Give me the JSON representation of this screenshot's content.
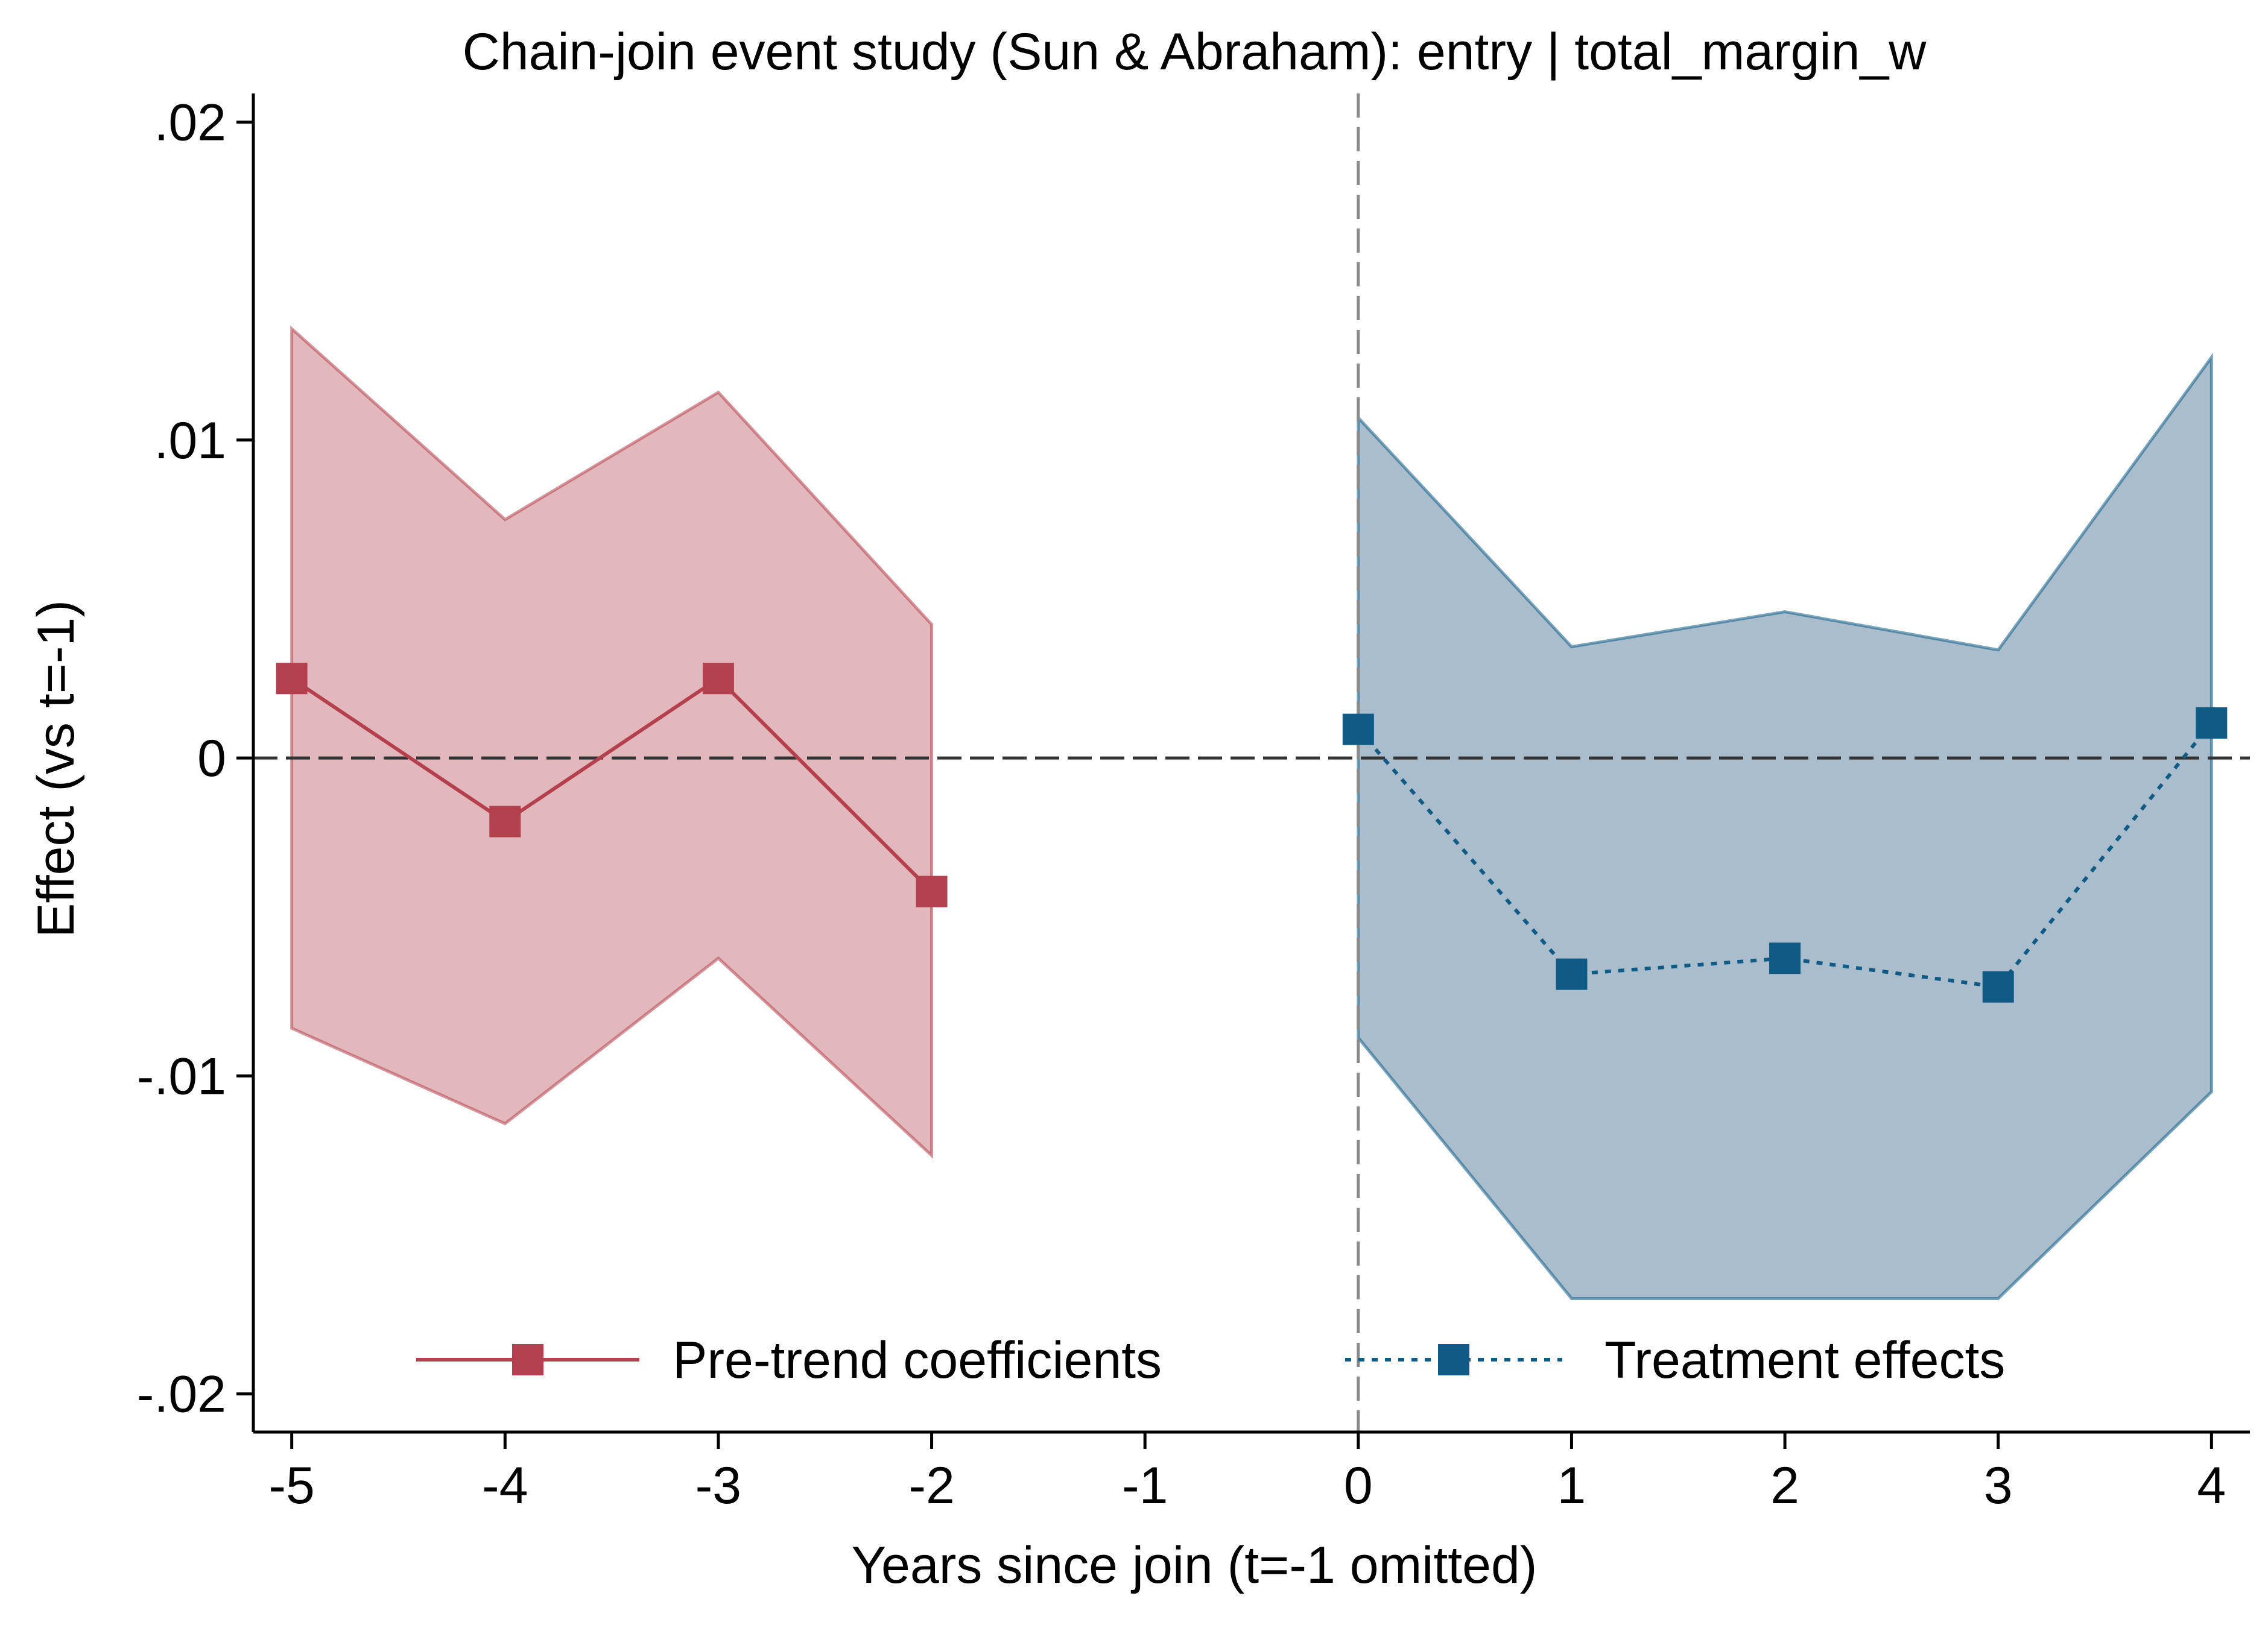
{
  "chart_data": {
    "type": "line",
    "title": "Chain-join event study (Sun & Abraham): entry | total_margin_w",
    "xlabel": "Years since join (t=-1 omitted)",
    "ylabel": "Effect (vs t=-1)",
    "x_ticks": [
      -5,
      -4,
      -3,
      -2,
      -1,
      0,
      1,
      2,
      3,
      4
    ],
    "x_tick_labels": [
      "-5",
      "-4",
      "-3",
      "-2",
      "-1",
      "0",
      "1",
      "2",
      "3",
      "4"
    ],
    "y_ticks": [
      -0.02,
      -0.01,
      0,
      0.01,
      0.02
    ],
    "y_tick_labels": [
      "-.02",
      "-.01",
      "0",
      ".01",
      ".02"
    ],
    "xlim": [
      -5.18,
      4.18
    ],
    "ylim": [
      -0.0212,
      0.0209
    ],
    "reference_lines": {
      "y": 0,
      "x": 0
    },
    "grid": false,
    "legend_position": "bottom",
    "series": [
      {
        "name": "Pre-trend coefficients",
        "style": "solid",
        "color": "#b5404d",
        "band_color": "#e2b8bd",
        "x": [
          -5,
          -4,
          -3,
          -2
        ],
        "y": [
          0.0025,
          -0.002,
          0.0025,
          -0.0042
        ],
        "ci_upper": [
          0.0135,
          0.0075,
          0.0115,
          0.0042
        ],
        "ci_lower": [
          -0.0085,
          -0.0115,
          -0.0063,
          -0.0125
        ]
      },
      {
        "name": "Treatment effects",
        "style": "dotted",
        "color": "#0f5b85",
        "band_color": "#a9bdcd",
        "x": [
          0,
          1,
          2,
          3,
          4
        ],
        "y": [
          0.0009,
          -0.0068,
          -0.0063,
          -0.0072,
          0.0011
        ],
        "ci_upper": [
          0.0107,
          0.0035,
          0.0046,
          0.0034,
          0.0126
        ],
        "ci_lower": [
          -0.0088,
          -0.017,
          -0.017,
          -0.017,
          -0.0105
        ]
      }
    ]
  }
}
